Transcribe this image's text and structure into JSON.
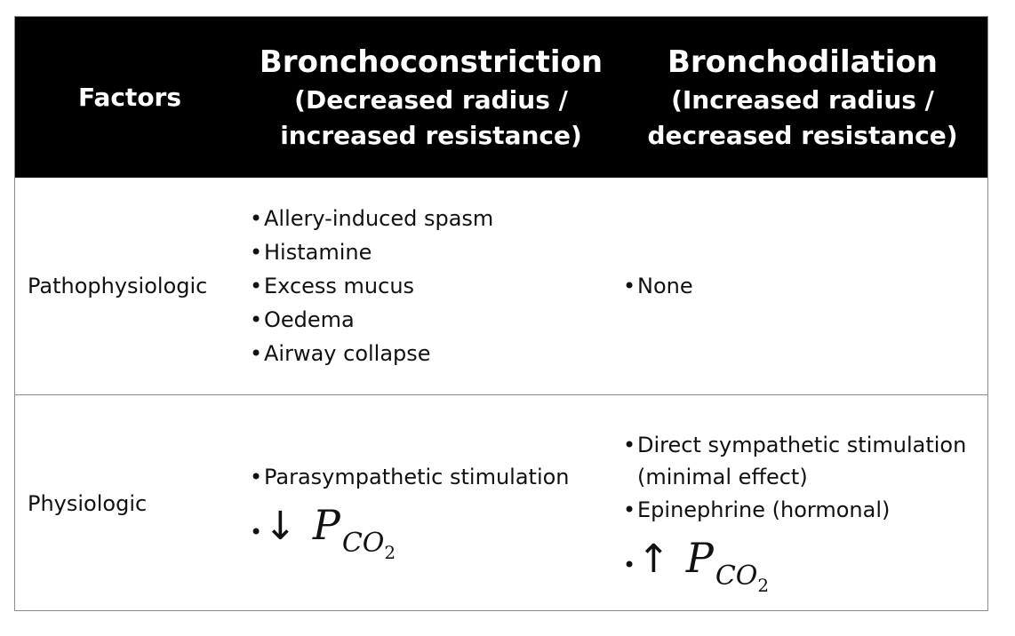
{
  "header": {
    "factors": "Factors",
    "constriction_title": "Bronchoconstriction",
    "constriction_sub_1": "(Decreased radius /",
    "constriction_sub_2": "increased resistance)",
    "dilation_title": "Bronchodilation",
    "dilation_sub_1": "(Increased radius /",
    "dilation_sub_2": "decreased resistance)"
  },
  "rows": [
    {
      "factor": "Pathophysiologic",
      "constriction": [
        "Allery-induced spasm",
        "Histamine",
        "Excess mucus",
        "Oedema",
        "Airway collapse"
      ],
      "dilation": [
        "None"
      ]
    },
    {
      "factor": "Physiologic",
      "constriction": [
        "Parasympathetic stimulation"
      ],
      "constriction_pco2": {
        "arrow": "↓",
        "var": "P",
        "sub": "CO",
        "sub2": "2"
      },
      "dilation": [
        "Direct sympathetic stimulation (minimal effect)",
        "Epinephrine (hormonal)"
      ],
      "dilation_pco2": {
        "arrow": "↑",
        "var": "P",
        "sub": "CO",
        "sub2": "2"
      }
    }
  ],
  "bullet": "•"
}
